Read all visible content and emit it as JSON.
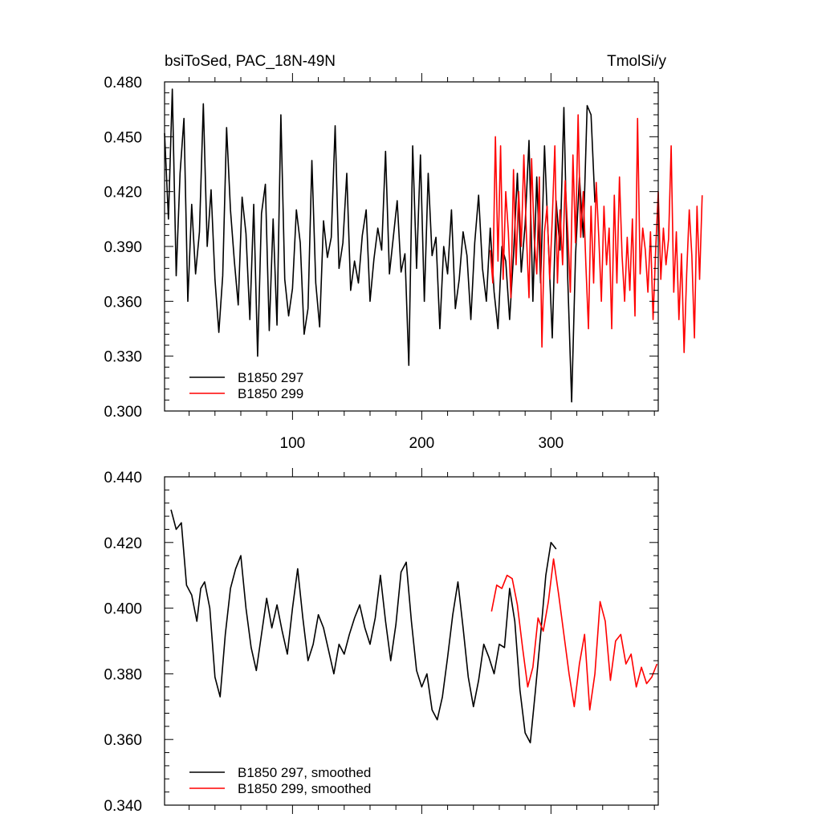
{
  "title_left": "bsiToSed, PAC_18N-49N",
  "title_right": "TmolSi/y",
  "colors": {
    "series1": "#000000",
    "series2": "#ff0000",
    "axis": "#000000"
  },
  "chart_data": [
    {
      "type": "line",
      "panel": "raw",
      "xlim": [
        1,
        383
      ],
      "ylim": [
        0.3,
        0.48
      ],
      "xticks": [
        100,
        200,
        300
      ],
      "xtick_labels": [
        "100",
        "200",
        "300"
      ],
      "yticks": [
        0.3,
        0.33,
        0.36,
        0.39,
        0.42,
        0.45,
        0.48
      ],
      "ytick_labels": [
        "0.300",
        "0.330",
        "0.360",
        "0.390",
        "0.420",
        "0.450",
        "0.480"
      ],
      "legend": [
        "B1850 297",
        "B1850 299"
      ],
      "series": [
        {
          "name": "B1850 297",
          "color": "#000000",
          "x_start": 1,
          "x_step": 3,
          "values": [
            0.452,
            0.405,
            0.476,
            0.374,
            0.43,
            0.46,
            0.36,
            0.413,
            0.375,
            0.398,
            0.468,
            0.39,
            0.421,
            0.372,
            0.343,
            0.374,
            0.455,
            0.41,
            0.382,
            0.358,
            0.417,
            0.397,
            0.35,
            0.413,
            0.33,
            0.408,
            0.424,
            0.344,
            0.405,
            0.347,
            0.462,
            0.372,
            0.352,
            0.367,
            0.41,
            0.392,
            0.342,
            0.356,
            0.437,
            0.37,
            0.346,
            0.404,
            0.384,
            0.395,
            0.456,
            0.378,
            0.392,
            0.43,
            0.366,
            0.382,
            0.37,
            0.396,
            0.41,
            0.36,
            0.383,
            0.4,
            0.388,
            0.442,
            0.375,
            0.395,
            0.415,
            0.376,
            0.386,
            0.325,
            0.445,
            0.378,
            0.44,
            0.36,
            0.43,
            0.385,
            0.395,
            0.345,
            0.39,
            0.375,
            0.41,
            0.356,
            0.372,
            0.398,
            0.385,
            0.35,
            0.392,
            0.418,
            0.378,
            0.36,
            0.4,
            0.365,
            0.345,
            0.39,
            0.382,
            0.35,
            0.385,
            0.43,
            0.376,
            0.402,
            0.448,
            0.36,
            0.428,
            0.37,
            0.445,
            0.392,
            0.34,
            0.415,
            0.388,
            0.466,
            0.372,
            0.305,
            0.385,
            0.428,
            0.395,
            0.467,
            0.462,
            0.414
          ]
        },
        {
          "name": "B1850 299",
          "color": "#ff0000",
          "x_start": 253,
          "x_step": 2,
          "values": [
            0.388,
            0.37,
            0.45,
            0.382,
            0.445,
            0.372,
            0.42,
            0.398,
            0.362,
            0.432,
            0.38,
            0.42,
            0.39,
            0.44,
            0.396,
            0.362,
            0.438,
            0.395,
            0.375,
            0.428,
            0.335,
            0.398,
            0.412,
            0.372,
            0.405,
            0.445,
            0.37,
            0.41,
            0.38,
            0.426,
            0.398,
            0.365,
            0.44,
            0.392,
            0.462,
            0.395,
            0.42,
            0.38,
            0.345,
            0.412,
            0.37,
            0.425,
            0.395,
            0.36,
            0.412,
            0.38,
            0.4,
            0.345,
            0.418,
            0.37,
            0.428,
            0.385,
            0.36,
            0.395,
            0.366,
            0.405,
            0.352,
            0.46,
            0.375,
            0.4,
            0.388,
            0.365,
            0.398,
            0.35,
            0.388,
            0.42,
            0.372,
            0.4,
            0.38,
            0.394,
            0.445,
            0.365,
            0.398,
            0.35,
            0.386,
            0.332,
            0.375,
            0.41,
            0.385,
            0.34,
            0.412,
            0.372,
            0.418
          ]
        }
      ]
    },
    {
      "type": "line",
      "panel": "smoothed",
      "xlim": [
        1,
        383
      ],
      "ylim": [
        0.34,
        0.44
      ],
      "xticks": [
        100,
        200,
        300
      ],
      "xtick_labels": [
        "",
        "",
        ""
      ],
      "yticks": [
        0.34,
        0.36,
        0.38,
        0.4,
        0.42,
        0.44
      ],
      "ytick_labels": [
        "0.340",
        "0.360",
        "0.380",
        "0.400",
        "0.420",
        "0.440"
      ],
      "legend": [
        "B1850 297, smoothed",
        "B1850 299, smoothed"
      ],
      "series": [
        {
          "name": "B1850 297, smoothed",
          "color": "#000000",
          "x": [
            6,
            10,
            14,
            18,
            22,
            26,
            29,
            32,
            36,
            40,
            44,
            48,
            52,
            56,
            60,
            64,
            68,
            72,
            76,
            80,
            84,
            88,
            92,
            96,
            100,
            104,
            108,
            112,
            116,
            120,
            124,
            128,
            132,
            136,
            140,
            144,
            148,
            152,
            156,
            160,
            164,
            168,
            172,
            176,
            180,
            184,
            188,
            192,
            196,
            200,
            204,
            208,
            212,
            216,
            220,
            224,
            228,
            232,
            236,
            240,
            244,
            248,
            252,
            256,
            260,
            264,
            268,
            272,
            276,
            280,
            284,
            288,
            292,
            296,
            300,
            304
          ],
          "values": [
            0.43,
            0.424,
            0.426,
            0.407,
            0.404,
            0.396,
            0.406,
            0.408,
            0.4,
            0.379,
            0.373,
            0.392,
            0.406,
            0.412,
            0.416,
            0.4,
            0.388,
            0.381,
            0.392,
            0.403,
            0.394,
            0.401,
            0.393,
            0.386,
            0.4,
            0.412,
            0.397,
            0.384,
            0.389,
            0.398,
            0.394,
            0.387,
            0.38,
            0.389,
            0.386,
            0.392,
            0.397,
            0.401,
            0.394,
            0.389,
            0.397,
            0.41,
            0.396,
            0.384,
            0.395,
            0.411,
            0.414,
            0.396,
            0.381,
            0.376,
            0.38,
            0.369,
            0.366,
            0.373,
            0.385,
            0.398,
            0.408,
            0.394,
            0.379,
            0.37,
            0.378,
            0.389,
            0.385,
            0.38,
            0.389,
            0.388,
            0.406,
            0.396,
            0.375,
            0.362,
            0.359,
            0.375,
            0.392,
            0.41,
            0.42,
            0.418
          ]
        },
        {
          "name": "B1850 299, smoothed",
          "color": "#ff0000",
          "x": [
            254,
            258,
            262,
            266,
            270,
            274,
            278,
            282,
            286,
            290,
            294,
            298,
            302,
            306,
            310,
            314,
            318,
            322,
            326,
            330,
            334,
            338,
            342,
            346,
            350,
            354,
            358,
            362,
            366,
            370,
            374,
            378,
            382
          ],
          "values": [
            0.399,
            0.407,
            0.406,
            0.41,
            0.409,
            0.401,
            0.388,
            0.376,
            0.382,
            0.397,
            0.393,
            0.402,
            0.415,
            0.404,
            0.392,
            0.38,
            0.37,
            0.383,
            0.392,
            0.369,
            0.38,
            0.402,
            0.396,
            0.378,
            0.39,
            0.392,
            0.383,
            0.386,
            0.376,
            0.382,
            0.377,
            0.379,
            0.383
          ]
        }
      ]
    }
  ]
}
